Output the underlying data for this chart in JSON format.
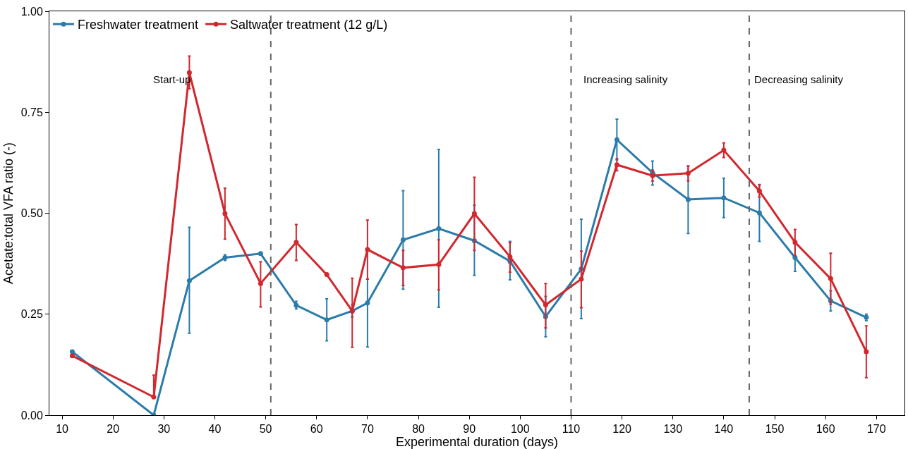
{
  "chart_data": {
    "type": "line",
    "xlabel": "Experimental duration (days)",
    "ylabel": "Acetate:total VFA ratio (-)",
    "x": [
      12,
      28,
      35,
      42,
      49,
      56,
      62,
      67,
      70,
      77,
      84,
      91,
      98,
      105,
      112,
      119,
      126,
      133,
      140,
      147,
      154,
      161,
      168
    ],
    "series": [
      {
        "name": "Freshwater treatment",
        "color": "#2b7bab",
        "values": [
          0.157,
          0.0,
          0.333,
          0.39,
          0.4,
          0.272,
          0.236,
          0.258,
          0.278,
          0.434,
          0.462,
          0.432,
          0.381,
          0.244,
          0.362,
          0.682,
          0.6,
          0.534,
          0.538,
          0.501,
          0.39,
          0.283,
          0.242
        ],
        "errors": [
          null,
          null,
          [
            0.203,
            0.465
          ],
          [
            0.383,
            0.397
          ],
          null,
          [
            0.263,
            0.282
          ],
          [
            0.184,
            0.288
          ],
          [
            0.243,
            0.273
          ],
          [
            0.169,
            0.337
          ],
          [
            0.312,
            0.556
          ],
          [
            0.267,
            0.658
          ],
          [
            0.346,
            0.52
          ],
          [
            0.335,
            0.43
          ],
          [
            0.194,
            0.294
          ],
          [
            0.239,
            0.485
          ],
          [
            0.632,
            0.733
          ],
          [
            0.57,
            0.629
          ],
          [
            0.45,
            0.617
          ],
          [
            0.489,
            0.587
          ],
          [
            0.43,
            0.571
          ],
          [
            0.356,
            0.424
          ],
          [
            0.258,
            0.308
          ],
          [
            0.234,
            0.25
          ]
        ]
      },
      {
        "name": "Saltwater treatment (12 g/L)",
        "color": "#d0282e",
        "values": [
          0.147,
          0.045,
          0.848,
          0.499,
          0.326,
          0.428,
          0.348,
          0.258,
          0.41,
          0.365,
          0.373,
          0.499,
          0.392,
          0.273,
          0.337,
          0.62,
          0.593,
          0.599,
          0.656,
          0.555,
          0.428,
          0.338,
          0.157
        ],
        "errors": [
          null,
          [
            0.045,
            0.099
          ],
          [
            0.808,
            0.889
          ],
          [
            0.436,
            0.562
          ],
          [
            0.268,
            0.38
          ],
          [
            0.383,
            0.472
          ],
          null,
          [
            0.168,
            0.339
          ],
          [
            0.337,
            0.483
          ],
          [
            0.321,
            0.408
          ],
          [
            0.31,
            0.434
          ],
          [
            0.408,
            0.589
          ],
          [
            0.354,
            0.427
          ],
          [
            0.216,
            0.326
          ],
          [
            0.266,
            0.406
          ],
          [
            0.605,
            0.635
          ],
          [
            0.58,
            0.607
          ],
          [
            0.58,
            0.617
          ],
          [
            0.638,
            0.674
          ],
          [
            0.54,
            0.57
          ],
          [
            0.395,
            0.46
          ],
          [
            0.275,
            0.401
          ],
          [
            0.093,
            0.221
          ]
        ]
      }
    ],
    "xlim": [
      7.5,
      175.5
    ],
    "xticks": [
      10,
      20,
      30,
      40,
      50,
      60,
      70,
      80,
      90,
      100,
      110,
      120,
      130,
      140,
      150,
      160,
      170
    ],
    "ylim": [
      0,
      1
    ],
    "yticks": [
      {
        "value": 0,
        "label": "0.00"
      },
      {
        "value": 0.25,
        "label": "0.25"
      },
      {
        "value": 0.5,
        "label": "0.50"
      },
      {
        "value": 0.75,
        "label": "0.75"
      },
      {
        "value": 1,
        "label": "1.00"
      }
    ],
    "ref_lines": [
      {
        "axis": "x",
        "value": 51,
        "color": "#666666",
        "line_style": "dashed"
      },
      {
        "axis": "x",
        "value": 110,
        "color": "#666666",
        "line_style": "dashed"
      },
      {
        "axis": "x",
        "value": 145,
        "color": "#666666",
        "line_style": "dashed"
      }
    ],
    "annotations": [
      "Start-up",
      "Increasing salinity",
      "Decreasing salinity"
    ],
    "marker": "circle",
    "line_style": "solid",
    "legend": "top left"
  }
}
